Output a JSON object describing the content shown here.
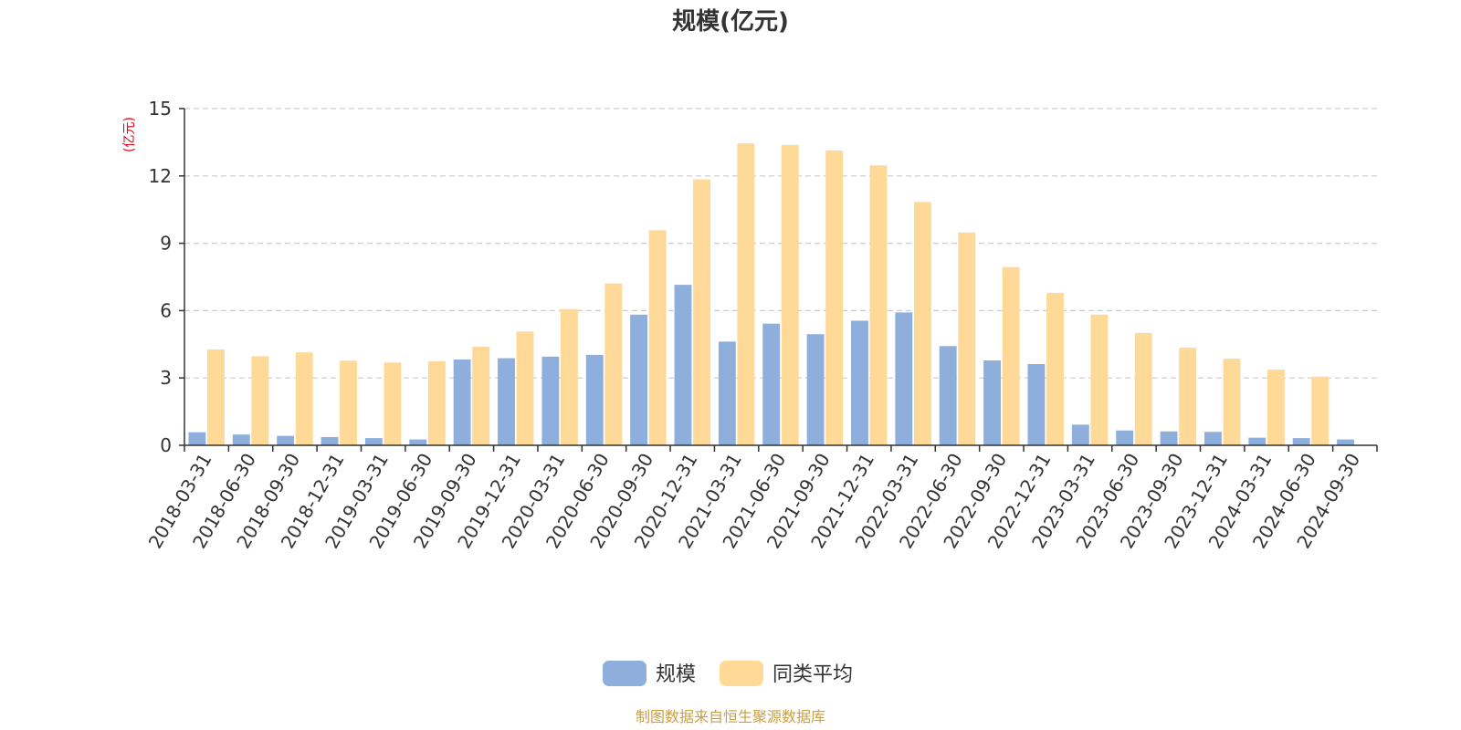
{
  "colors": {
    "series_0": "#8eaedc",
    "series_1": "#fed998",
    "grid": "#cccccc",
    "axis": "#333333",
    "ylabel": "#e60012",
    "source": "#c9a046"
  },
  "source_text": "制图数据来自恒生聚源数据库",
  "chart_data": {
    "type": "bar",
    "title": "规模(亿元)",
    "xlabel": "",
    "ylabel": "(亿元)",
    "ylim": [
      0,
      15
    ],
    "yticks": [
      0,
      3,
      6,
      9,
      12,
      15
    ],
    "grid": true,
    "legend_position": "bottom-center",
    "categories": [
      "2018-03-31",
      "2018-06-30",
      "2018-09-30",
      "2018-12-31",
      "2019-03-31",
      "2019-06-30",
      "2019-09-30",
      "2019-12-31",
      "2020-03-31",
      "2020-06-30",
      "2020-09-30",
      "2020-12-31",
      "2021-03-31",
      "2021-06-30",
      "2021-09-30",
      "2021-12-31",
      "2022-03-31",
      "2022-06-30",
      "2022-09-30",
      "2022-12-31",
      "2023-03-31",
      "2023-06-30",
      "2023-09-30",
      "2023-12-31",
      "2024-03-31",
      "2024-06-30",
      "2024-09-30"
    ],
    "series": [
      {
        "name": "规模",
        "values": [
          0.58,
          0.48,
          0.42,
          0.37,
          0.32,
          0.26,
          3.82,
          3.88,
          3.95,
          4.03,
          5.82,
          7.15,
          4.62,
          5.42,
          4.95,
          5.55,
          5.92,
          4.42,
          3.78,
          3.62,
          0.92,
          0.66,
          0.62,
          0.6,
          0.34,
          0.32,
          0.26
        ]
      },
      {
        "name": "同类平均",
        "values": [
          4.27,
          3.97,
          4.14,
          3.77,
          3.69,
          3.74,
          4.39,
          5.07,
          6.07,
          7.21,
          9.58,
          11.85,
          13.45,
          13.38,
          13.13,
          12.47,
          10.84,
          9.48,
          7.94,
          6.79,
          5.82,
          5.0,
          4.35,
          3.86,
          3.37,
          3.06,
          null
        ]
      }
    ]
  }
}
